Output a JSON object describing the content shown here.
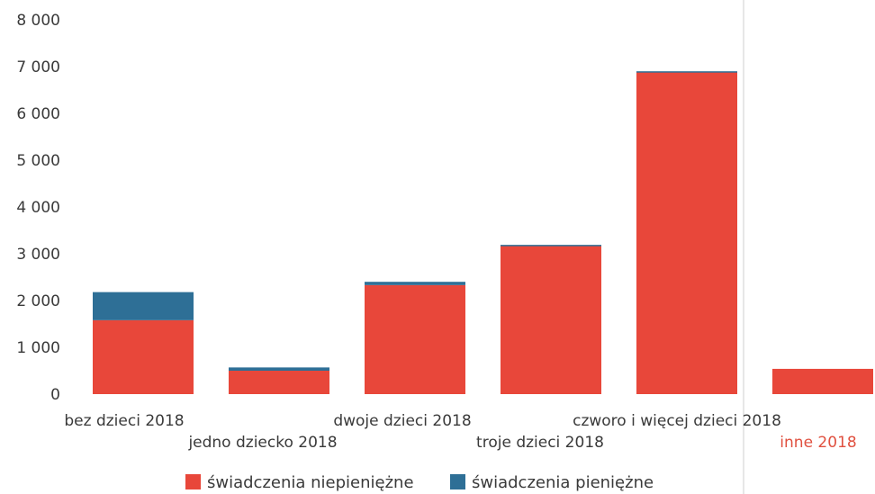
{
  "chart_data": {
    "type": "bar",
    "stacked": true,
    "categories": [
      "bez dzieci 2018",
      "jedno dziecko 2018",
      "dwoje dzieci 2018",
      "troje dzieci 2018",
      "czworo i więcej dzieci 2018",
      "inne 2018"
    ],
    "series": [
      {
        "name": "świadczenia niepieniężne",
        "color": "#e8473a",
        "values": [
          1580,
          500,
          2330,
          3180,
          6880,
          540
        ]
      },
      {
        "name": "świadczenia pieniężne",
        "color": "#2e6f96",
        "values": [
          600,
          70,
          70,
          10,
          20,
          0
        ]
      }
    ],
    "yticks": [
      "0",
      "1 000",
      "2 000",
      "3 000",
      "4 000",
      "5 000",
      "6 000",
      "7 000",
      "8 000"
    ],
    "ylim": [
      0,
      8000
    ],
    "legend_position": "bottom",
    "grid": false
  }
}
